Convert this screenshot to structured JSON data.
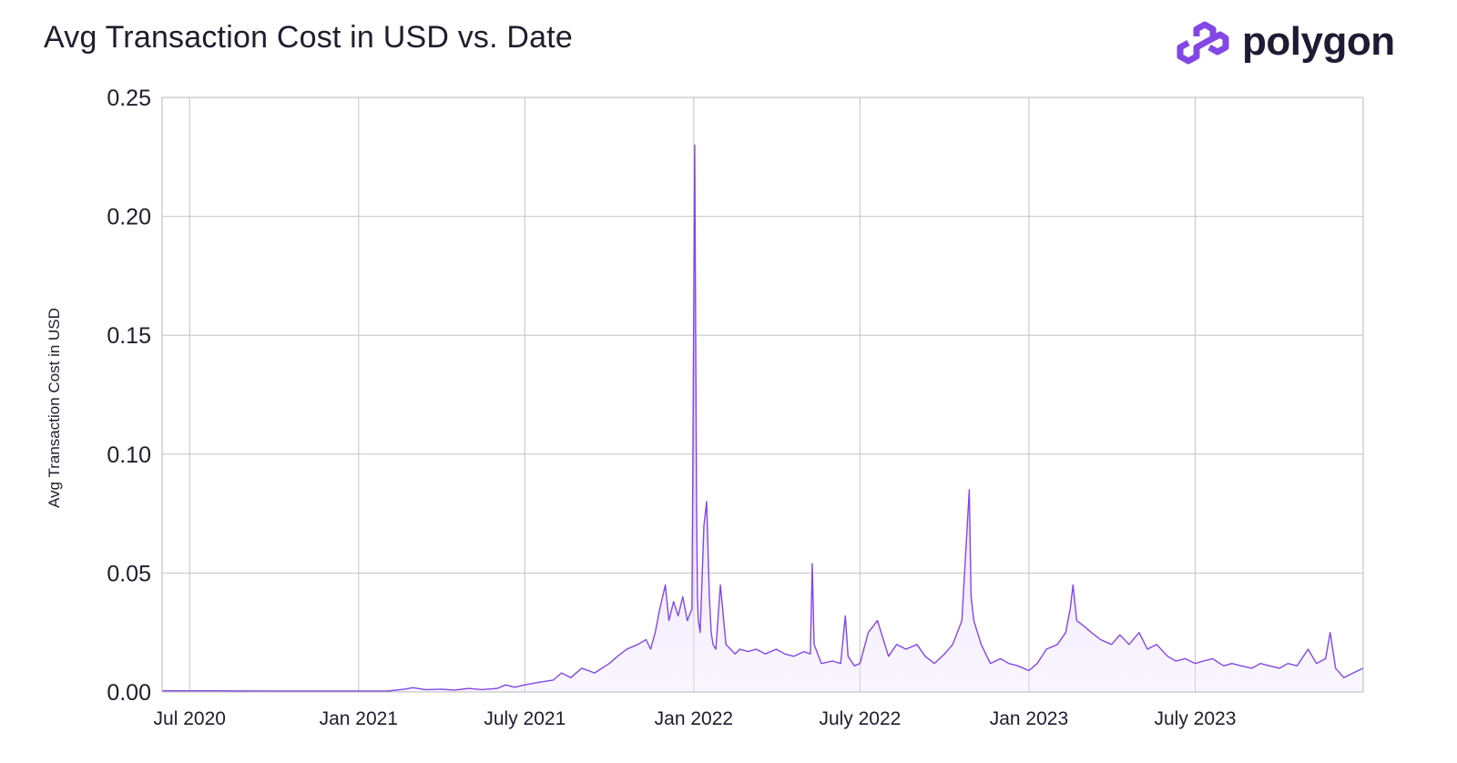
{
  "title": "Avg Transaction Cost in USD vs. Date",
  "brand": {
    "name": "polygon",
    "logo_icon": "polygon-logo-icon",
    "color": "#8247e5"
  },
  "chart_data": {
    "type": "area",
    "title": "Avg Transaction Cost in USD vs. Date",
    "xlabel": "",
    "ylabel": "Avg Transaction Cost in USD",
    "xlim": [
      "2020-06-01",
      "2023-12-31"
    ],
    "ylim": [
      0,
      0.25
    ],
    "grid": true,
    "legend": "none",
    "line_color": "#8247e5",
    "fill_color": "#b99af0",
    "y_ticks": [
      "0.00",
      "0.05",
      "0.10",
      "0.15",
      "0.20",
      "0.25"
    ],
    "x_ticks": [
      {
        "date": "2020-07-01",
        "label": "Jul 2020"
      },
      {
        "date": "2021-01-01",
        "label": "Jan 2021"
      },
      {
        "date": "2021-07-01",
        "label": "July 2021"
      },
      {
        "date": "2022-01-01",
        "label": "Jan 2022"
      },
      {
        "date": "2022-07-01",
        "label": "July 2022"
      },
      {
        "date": "2023-01-01",
        "label": "Jan 2023"
      },
      {
        "date": "2023-07-01",
        "label": "July 2023"
      }
    ],
    "series": [
      {
        "x": [
          "2020-06-01",
          "2020-08-01",
          "2020-10-01",
          "2020-12-01",
          "2021-02-01",
          "2021-02-20",
          "2021-03-01",
          "2021-03-15",
          "2021-04-01",
          "2021-04-15",
          "2021-05-01",
          "2021-05-15",
          "2021-06-01",
          "2021-06-10",
          "2021-06-20",
          "2021-07-01",
          "2021-07-15",
          "2021-08-01",
          "2021-08-10",
          "2021-08-20",
          "2021-09-01",
          "2021-09-15",
          "2021-10-01",
          "2021-10-10",
          "2021-10-20",
          "2021-11-01",
          "2021-11-10",
          "2021-11-15",
          "2021-11-20",
          "2021-11-25",
          "2021-12-01",
          "2021-12-05",
          "2021-12-10",
          "2021-12-15",
          "2021-12-20",
          "2021-12-25",
          "2021-12-30",
          "2022-01-02",
          "2022-01-04",
          "2022-01-05",
          "2022-01-06",
          "2022-01-08",
          "2022-01-12",
          "2022-01-15",
          "2022-01-18",
          "2022-01-20",
          "2022-01-22",
          "2022-01-25",
          "2022-01-30",
          "2022-02-05",
          "2022-02-10",
          "2022-02-15",
          "2022-02-20",
          "2022-03-01",
          "2022-03-10",
          "2022-03-20",
          "2022-04-01",
          "2022-04-10",
          "2022-04-20",
          "2022-05-01",
          "2022-05-08",
          "2022-05-10",
          "2022-05-12",
          "2022-05-20",
          "2022-06-01",
          "2022-06-10",
          "2022-06-15",
          "2022-06-18",
          "2022-06-25",
          "2022-07-01",
          "2022-07-10",
          "2022-07-20",
          "2022-08-01",
          "2022-08-10",
          "2022-08-20",
          "2022-09-01",
          "2022-09-10",
          "2022-09-20",
          "2022-10-01",
          "2022-10-10",
          "2022-10-20",
          "2022-10-28",
          "2022-10-30",
          "2022-11-02",
          "2022-11-10",
          "2022-11-20",
          "2022-12-01",
          "2022-12-10",
          "2022-12-20",
          "2023-01-01",
          "2023-01-10",
          "2023-01-20",
          "2023-02-01",
          "2023-02-10",
          "2023-02-15",
          "2023-02-18",
          "2023-02-22",
          "2023-03-01",
          "2023-03-10",
          "2023-03-20",
          "2023-04-01",
          "2023-04-10",
          "2023-04-20",
          "2023-05-01",
          "2023-05-10",
          "2023-05-20",
          "2023-06-01",
          "2023-06-10",
          "2023-06-20",
          "2023-07-01",
          "2023-07-10",
          "2023-07-20",
          "2023-08-01",
          "2023-08-10",
          "2023-08-20",
          "2023-09-01",
          "2023-09-10",
          "2023-09-20",
          "2023-10-01",
          "2023-10-10",
          "2023-10-20",
          "2023-11-01",
          "2023-11-10",
          "2023-11-20",
          "2023-11-25",
          "2023-12-01",
          "2023-12-10",
          "2023-12-20",
          "2023-12-31"
        ],
        "y": [
          0.0005,
          0.0005,
          0.0004,
          0.0004,
          0.0004,
          0.0012,
          0.0018,
          0.001,
          0.0012,
          0.0008,
          0.0015,
          0.001,
          0.0015,
          0.003,
          0.002,
          0.003,
          0.004,
          0.005,
          0.008,
          0.006,
          0.01,
          0.008,
          0.012,
          0.015,
          0.018,
          0.02,
          0.022,
          0.018,
          0.025,
          0.035,
          0.045,
          0.03,
          0.038,
          0.032,
          0.04,
          0.03,
          0.035,
          0.23,
          0.08,
          0.04,
          0.03,
          0.025,
          0.07,
          0.08,
          0.04,
          0.025,
          0.02,
          0.018,
          0.045,
          0.02,
          0.018,
          0.016,
          0.018,
          0.017,
          0.018,
          0.016,
          0.018,
          0.016,
          0.015,
          0.017,
          0.016,
          0.054,
          0.02,
          0.012,
          0.013,
          0.012,
          0.032,
          0.015,
          0.011,
          0.012,
          0.025,
          0.03,
          0.015,
          0.02,
          0.018,
          0.02,
          0.015,
          0.012,
          0.016,
          0.02,
          0.03,
          0.085,
          0.04,
          0.03,
          0.02,
          0.012,
          0.014,
          0.012,
          0.011,
          0.009,
          0.012,
          0.018,
          0.02,
          0.025,
          0.035,
          0.045,
          0.03,
          0.028,
          0.025,
          0.022,
          0.02,
          0.024,
          0.02,
          0.025,
          0.018,
          0.02,
          0.015,
          0.013,
          0.014,
          0.012,
          0.013,
          0.014,
          0.011,
          0.012,
          0.011,
          0.01,
          0.012,
          0.011,
          0.01,
          0.012,
          0.011,
          0.018,
          0.012,
          0.014,
          0.025,
          0.01,
          0.006,
          0.008,
          0.01
        ]
      }
    ]
  }
}
